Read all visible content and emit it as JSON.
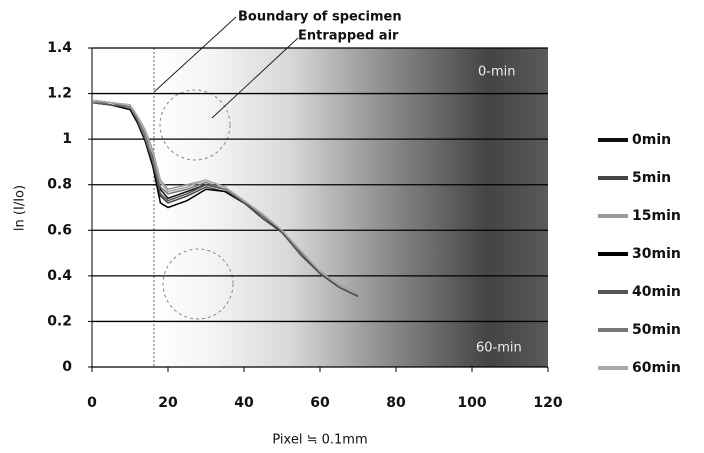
{
  "chart_data": {
    "type": "line",
    "ylabel": "ln (I/Io)",
    "xlabel": "Pixel ≒  0.1mm",
    "annotations": [
      "Boundary of specimen",
      "Entrapped air",
      "0-min",
      "60-min"
    ],
    "x": [
      0,
      5,
      10,
      12,
      14,
      16,
      18,
      20,
      25,
      30,
      35,
      40,
      45,
      50,
      55,
      60,
      65,
      70
    ],
    "series": [
      {
        "name": "0min",
        "color": "#111111",
        "values": [
          1.17,
          1.16,
          1.14,
          1.08,
          1.0,
          0.92,
          0.78,
          0.74,
          0.77,
          0.8,
          0.78,
          0.72,
          0.66,
          0.6,
          0.5,
          0.42,
          0.36,
          0.32
        ]
      },
      {
        "name": "5min",
        "color": "#444444",
        "values": [
          1.17,
          1.16,
          1.15,
          1.09,
          1.02,
          0.9,
          0.75,
          0.72,
          0.75,
          0.79,
          0.77,
          0.72,
          0.66,
          0.6,
          0.5,
          0.42,
          0.36,
          0.32
        ]
      },
      {
        "name": "15min",
        "color": "#999999",
        "values": [
          1.16,
          1.16,
          1.15,
          1.1,
          1.04,
          0.95,
          0.82,
          0.78,
          0.8,
          0.82,
          0.79,
          0.73,
          0.67,
          0.6,
          0.5,
          0.42,
          0.36,
          0.31
        ]
      },
      {
        "name": "30min",
        "color": "#000000",
        "values": [
          1.16,
          1.15,
          1.13,
          1.07,
          0.99,
          0.88,
          0.72,
          0.7,
          0.73,
          0.78,
          0.77,
          0.72,
          0.66,
          0.59,
          0.5,
          0.41,
          0.35,
          0.31
        ]
      },
      {
        "name": "40min",
        "color": "#555555",
        "values": [
          1.16,
          1.15,
          1.14,
          1.08,
          1.0,
          0.9,
          0.76,
          0.73,
          0.76,
          0.8,
          0.78,
          0.72,
          0.65,
          0.59,
          0.49,
          0.41,
          0.35,
          0.31
        ]
      },
      {
        "name": "50min",
        "color": "#777777",
        "values": [
          1.16,
          1.16,
          1.14,
          1.09,
          1.01,
          0.91,
          0.79,
          0.76,
          0.78,
          0.81,
          0.78,
          0.73,
          0.66,
          0.6,
          0.5,
          0.42,
          0.36,
          0.32
        ]
      },
      {
        "name": "60min",
        "color": "#aaaaaa",
        "values": [
          1.17,
          1.16,
          1.15,
          1.1,
          1.03,
          0.94,
          0.81,
          0.77,
          0.79,
          0.82,
          0.79,
          0.73,
          0.67,
          0.6,
          0.51,
          0.42,
          0.36,
          0.32
        ]
      }
    ],
    "xlim": [
      0,
      120
    ],
    "xticks": [
      0,
      20,
      40,
      60,
      80,
      100,
      120
    ],
    "ylim": [
      0,
      1.4
    ],
    "yticks": [
      0,
      0.2,
      0.4,
      0.6,
      0.8,
      1,
      1.2,
      1.4
    ],
    "grid": true
  }
}
